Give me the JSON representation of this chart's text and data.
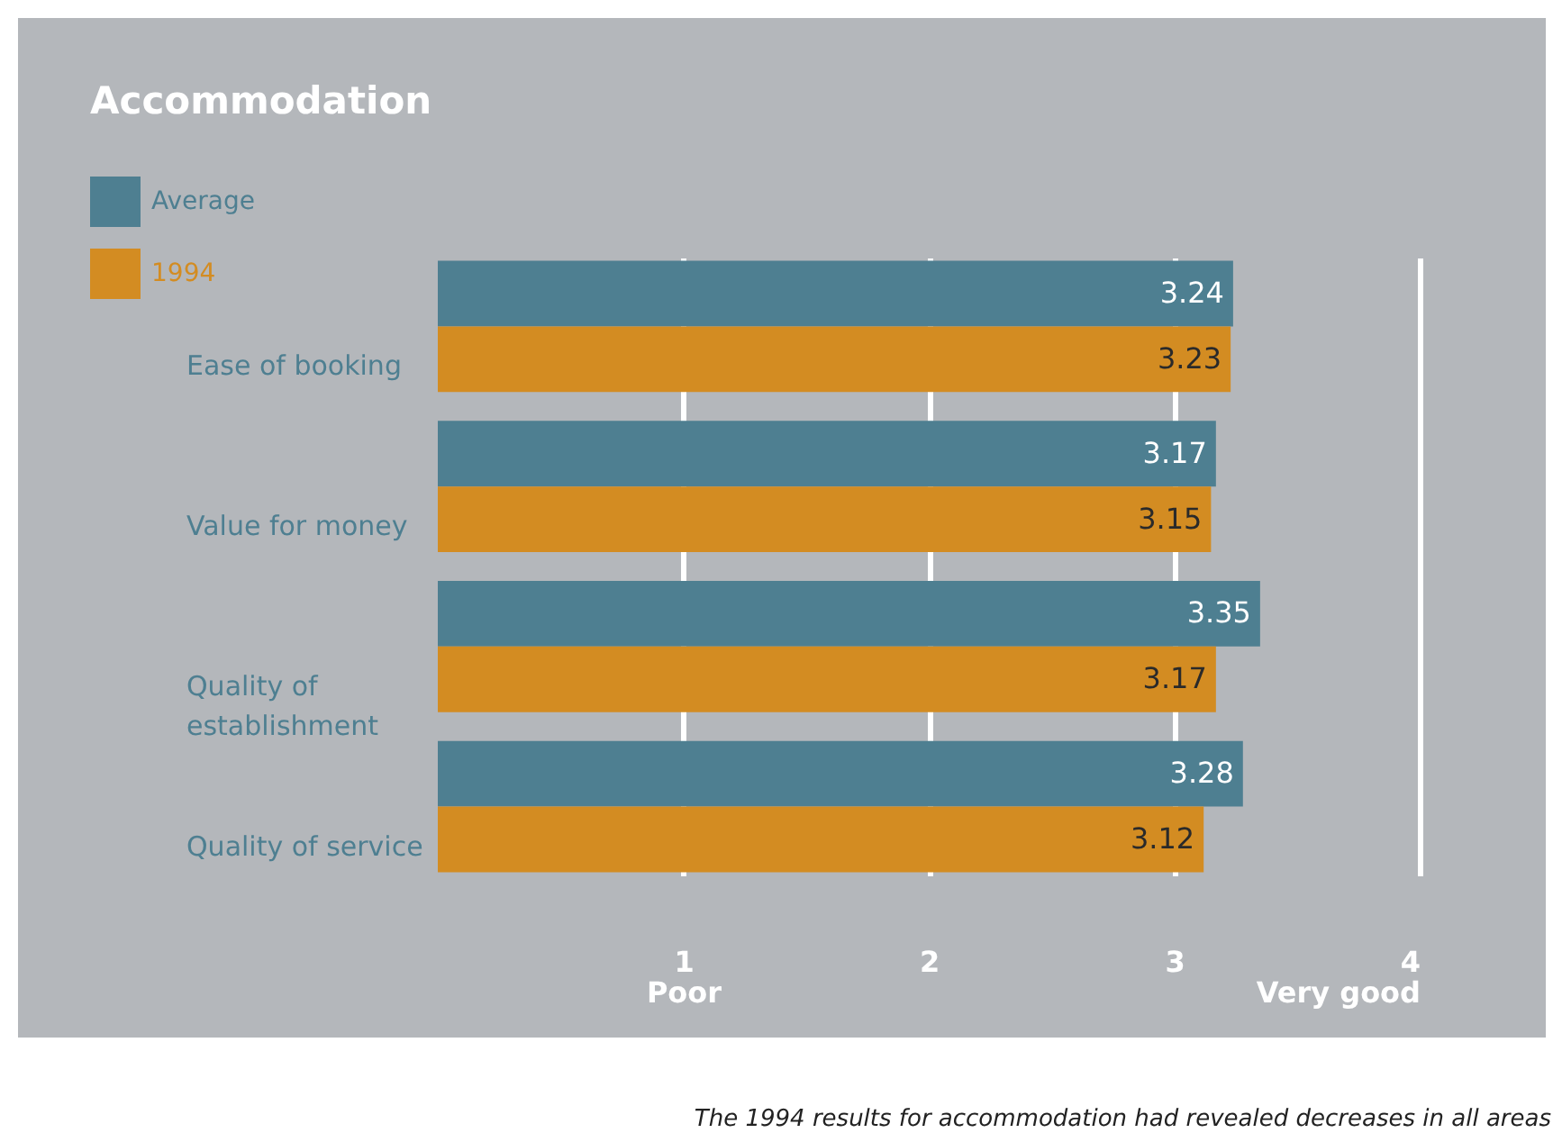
{
  "chart_data": {
    "type": "bar",
    "orientation": "horizontal",
    "title": "Accommodation",
    "categories": [
      "Ease of booking",
      "Value for money",
      "Quality of establishment",
      "Quality of service"
    ],
    "series": [
      {
        "name": "Average",
        "color": "#4e7f91",
        "values": [
          3.24,
          3.17,
          3.35,
          3.28
        ]
      },
      {
        "name": "1994",
        "color": "#d38c22",
        "values": [
          3.23,
          3.15,
          3.17,
          3.12
        ]
      }
    ],
    "xlim": [
      0,
      4
    ],
    "xticks": [
      {
        "value": 1,
        "label": "1\nPoor"
      },
      2,
      3,
      {
        "value": 4,
        "label": "4\nVery good"
      }
    ],
    "grid": "x",
    "legend": "top left",
    "data_labels": true,
    "annotations": [
      "The 1994 results for accommodation had revealed decreases in all areas"
    ]
  }
}
